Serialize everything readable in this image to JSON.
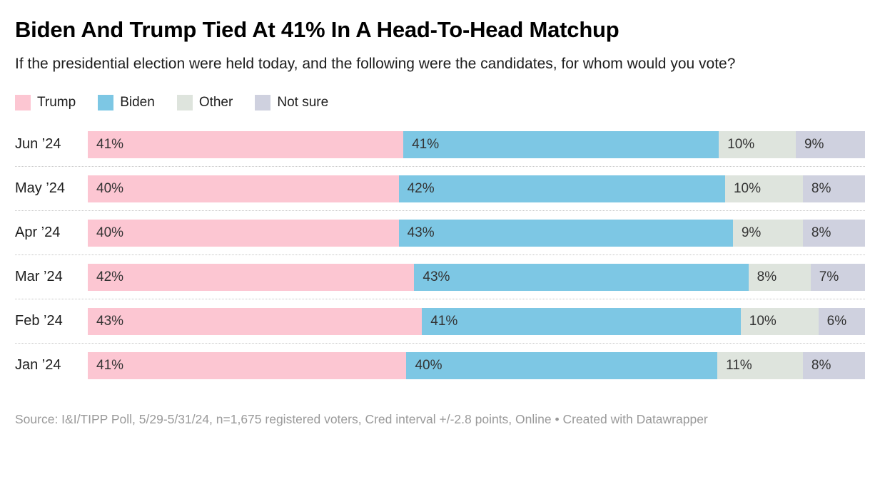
{
  "chart_data": {
    "type": "bar",
    "stacked": true,
    "orientation": "horizontal",
    "title": "Biden And Trump Tied At 41% In A Head-To-Head Matchup",
    "subtitle": "If the presidential election were held today, and the following were the candidates, for whom would you vote?",
    "categories": [
      "Jun ’24",
      "May ’24",
      "Apr ’24",
      "Mar ’24",
      "Feb ’24",
      "Jan ’24"
    ],
    "series": [
      {
        "name": "Trump",
        "color": "#fcc6d2",
        "values": [
          41,
          40,
          40,
          42,
          43,
          41
        ]
      },
      {
        "name": "Biden",
        "color": "#7dc7e4",
        "values": [
          41,
          42,
          43,
          43,
          41,
          40
        ]
      },
      {
        "name": "Other",
        "color": "#dee4dd",
        "values": [
          10,
          10,
          9,
          8,
          10,
          11
        ]
      },
      {
        "name": "Not sure",
        "color": "#cfd1df",
        "values": [
          9,
          8,
          8,
          7,
          6,
          8
        ]
      }
    ],
    "value_suffix": "%",
    "xlim": [
      0,
      100
    ],
    "grid": false,
    "legend_position": "top",
    "value_label_color": "#333333",
    "source_note": "Source: I&I/TIPP Poll, 5/29-5/31/24, n=1,675 registered voters, Cred interval +/-2.8 points, Online • Created with Datawrapper"
  }
}
